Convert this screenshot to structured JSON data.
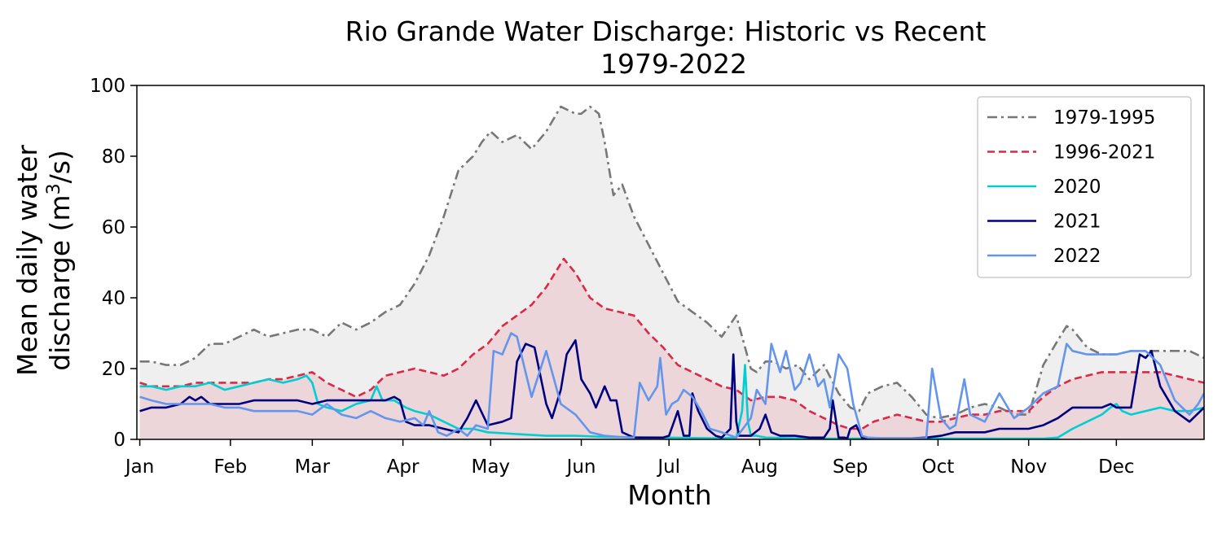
{
  "chart_data": {
    "type": "line",
    "title": "Rio Grande Water Discharge: Historic vs Recent",
    "subtitle": "1979-2022",
    "xlabel": "Month",
    "ylabel_line1": "Mean daily water",
    "ylabel_line2_prefix": "discharge (m",
    "ylabel_superscript": "3",
    "ylabel_line2_suffix": "/s)",
    "xlim": [
      0,
      365
    ],
    "ylim": [
      0,
      100
    ],
    "yticks": [
      0,
      20,
      40,
      60,
      80,
      100
    ],
    "xticks": [
      {
        "day": 1,
        "label": "Jan"
      },
      {
        "day": 32,
        "label": "Feb"
      },
      {
        "day": 60,
        "label": "Mar"
      },
      {
        "day": 91,
        "label": "Apr"
      },
      {
        "day": 121,
        "label": "May"
      },
      {
        "day": 152,
        "label": "Jun"
      },
      {
        "day": 182,
        "label": "Jul"
      },
      {
        "day": 213,
        "label": "Aug"
      },
      {
        "day": 244,
        "label": "Sep"
      },
      {
        "day": 274,
        "label": "Oct"
      },
      {
        "day": 305,
        "label": "Nov"
      },
      {
        "day": 335,
        "label": "Dec"
      }
    ],
    "legend_position": "top-right",
    "fills": [
      {
        "series": "1979-1995",
        "color": "#efefef"
      },
      {
        "series": "1996-2021",
        "color": "#ecd6da"
      }
    ],
    "series": [
      {
        "name": "1979-1995",
        "color": "#777777",
        "dash": "dashdot",
        "x": [
          1,
          5,
          10,
          15,
          20,
          25,
          30,
          35,
          40,
          45,
          50,
          55,
          60,
          65,
          70,
          75,
          80,
          85,
          90,
          95,
          100,
          105,
          110,
          115,
          118,
          121,
          125,
          130,
          135,
          140,
          145,
          150,
          152,
          155,
          158,
          160,
          163,
          166,
          170,
          175,
          180,
          185,
          190,
          195,
          200,
          205,
          210,
          212,
          215,
          218,
          222,
          226,
          230,
          235,
          240,
          244,
          247,
          250,
          255,
          260,
          265,
          270,
          274,
          280,
          285,
          290,
          295,
          300,
          305,
          310,
          315,
          318,
          320,
          325,
          330,
          335,
          340,
          345,
          350,
          355,
          360,
          365
        ],
        "y": [
          22,
          22,
          21,
          21,
          23,
          27,
          27,
          29,
          31,
          29,
          30,
          31,
          31,
          29,
          33,
          31,
          33,
          36,
          38,
          44,
          52,
          63,
          76,
          80,
          84,
          87,
          84,
          86,
          82,
          87,
          94,
          92,
          92,
          94,
          92,
          84,
          69,
          72,
          63,
          55,
          47,
          39,
          36,
          33,
          29,
          35,
          20,
          19,
          22,
          22,
          20,
          21,
          17,
          21,
          13,
          9,
          8,
          13,
          15,
          16,
          12,
          7,
          6,
          7,
          9,
          10,
          9,
          7,
          7,
          21,
          28,
          32,
          31,
          26,
          24,
          24,
          25,
          25,
          25,
          25,
          25,
          23
        ]
      },
      {
        "name": "1996-2021",
        "color": "#dc2847",
        "dash": "dashed",
        "x": [
          1,
          5,
          10,
          15,
          20,
          25,
          30,
          35,
          40,
          45,
          50,
          55,
          60,
          65,
          70,
          75,
          80,
          85,
          90,
          95,
          100,
          105,
          110,
          115,
          120,
          125,
          130,
          135,
          140,
          143,
          146,
          150,
          155,
          160,
          165,
          170,
          175,
          180,
          185,
          190,
          195,
          200,
          205,
          210,
          215,
          220,
          225,
          230,
          235,
          240,
          244,
          248,
          252,
          256,
          260,
          265,
          270,
          275,
          280,
          285,
          290,
          295,
          300,
          305,
          310,
          315,
          320,
          325,
          330,
          335,
          340,
          345,
          350,
          355,
          360,
          365
        ],
        "y": [
          16,
          15,
          15,
          15,
          16,
          16,
          16,
          16,
          16,
          17,
          17,
          18,
          19,
          16,
          14,
          12,
          14,
          18,
          19,
          20,
          19,
          18,
          20,
          24,
          27,
          32,
          35,
          38,
          43,
          47,
          51,
          47,
          40,
          37,
          36,
          35,
          30,
          26,
          21,
          19,
          17,
          15,
          14,
          11,
          12,
          12,
          11,
          8,
          6,
          4,
          3,
          3,
          5,
          6,
          7,
          6,
          5,
          5,
          6,
          7,
          7,
          8,
          8,
          8,
          12,
          15,
          17,
          18,
          19,
          19,
          19,
          19,
          19,
          18,
          17,
          16
        ]
      },
      {
        "name": "2020",
        "color": "#00ced1",
        "dash": "solid",
        "x": [
          1,
          5,
          10,
          15,
          20,
          25,
          30,
          35,
          40,
          45,
          50,
          55,
          58,
          60,
          62,
          65,
          70,
          75,
          80,
          82,
          84,
          88,
          92,
          95,
          100,
          105,
          110,
          115,
          120,
          130,
          140,
          150,
          160,
          170,
          180,
          190,
          200,
          205,
          207,
          208,
          209,
          210,
          212,
          215,
          225,
          240,
          255,
          270,
          280,
          290,
          300,
          310,
          315,
          320,
          325,
          330,
          333,
          335,
          337,
          340,
          345,
          350,
          355,
          360,
          365
        ],
        "y": [
          15,
          15,
          14,
          15,
          15,
          16,
          14,
          15,
          16,
          17,
          16,
          17,
          18,
          16,
          10,
          9,
          8,
          10,
          11,
          15,
          11,
          11,
          9,
          8,
          7,
          5,
          3,
          3,
          2,
          1.5,
          1,
          1,
          0.7,
          0.6,
          0.5,
          0.4,
          0.3,
          0.5,
          8,
          21,
          5,
          1,
          1,
          0.5,
          0.3,
          0.2,
          0.2,
          0.2,
          0.2,
          0.2,
          0.2,
          0.2,
          0.5,
          3,
          5,
          7,
          9,
          10,
          8,
          7,
          8,
          9,
          8,
          8,
          9
        ]
      },
      {
        "name": "2021",
        "color": "#00007f",
        "dash": "solid",
        "x": [
          1,
          5,
          10,
          15,
          18,
          20,
          22,
          25,
          30,
          35,
          40,
          45,
          50,
          55,
          60,
          65,
          70,
          75,
          80,
          85,
          88,
          90,
          92,
          95,
          100,
          105,
          110,
          113,
          116,
          120,
          125,
          128,
          130,
          133,
          136,
          140,
          142,
          145,
          147,
          150,
          152,
          155,
          157,
          160,
          162,
          164,
          166,
          170,
          175,
          180,
          182,
          185,
          187,
          189,
          190,
          192,
          195,
          198,
          200,
          203,
          204,
          205,
          206,
          210,
          213,
          215,
          217,
          220,
          225,
          230,
          235,
          237,
          238,
          240,
          242,
          243,
          244,
          246,
          248,
          252,
          256,
          260,
          265,
          270,
          275,
          280,
          285,
          290,
          295,
          300,
          305,
          310,
          315,
          320,
          325,
          330,
          333,
          335,
          337,
          340,
          343,
          345,
          347,
          350,
          355,
          360,
          365
        ],
        "y": [
          8,
          9,
          9,
          10,
          12,
          11,
          12,
          10,
          10,
          10,
          11,
          11,
          11,
          11,
          10,
          11,
          11,
          11,
          11,
          11,
          12,
          11,
          5,
          4,
          4,
          3,
          2,
          6,
          11,
          4,
          5,
          6,
          22,
          27,
          26,
          10,
          6,
          14,
          24,
          28,
          17,
          13,
          9,
          15,
          11,
          11,
          2,
          0.5,
          0.5,
          0.5,
          1,
          8,
          1,
          1,
          13,
          8,
          3,
          1,
          0.5,
          3,
          24,
          5,
          1,
          1,
          3,
          7,
          2,
          1,
          1,
          0.5,
          0.5,
          3,
          11,
          0.5,
          0.5,
          0.3,
          3,
          4,
          0.5,
          0.3,
          0.3,
          0.3,
          0.3,
          0.5,
          1,
          2,
          2,
          2,
          3,
          3,
          3,
          4,
          6,
          9,
          9,
          9,
          10,
          9,
          9,
          9,
          24,
          23,
          25,
          15,
          8,
          5,
          9
        ]
      },
      {
        "name": "2022",
        "color": "#6495ed",
        "dash": "solid",
        "x": [
          1,
          5,
          10,
          15,
          20,
          25,
          30,
          35,
          40,
          45,
          50,
          55,
          60,
          65,
          70,
          75,
          80,
          85,
          90,
          95,
          98,
          100,
          103,
          106,
          110,
          113,
          116,
          120,
          122,
          125,
          128,
          130,
          135,
          140,
          145,
          150,
          155,
          160,
          165,
          170,
          172,
          175,
          178,
          179,
          181,
          183,
          185,
          187,
          190,
          193,
          196,
          200,
          205,
          210,
          212,
          215,
          217,
          220,
          222,
          225,
          227,
          230,
          233,
          235,
          237,
          240,
          243,
          245,
          248,
          250,
          255,
          260,
          265,
          270,
          272,
          275,
          278,
          280,
          283,
          285,
          290,
          295,
          300,
          305,
          310,
          315,
          318,
          320,
          325,
          330,
          335,
          340,
          345,
          350,
          355,
          360,
          363,
          365
        ],
        "y": [
          12,
          11,
          10,
          10,
          10,
          10,
          9,
          9,
          8,
          8,
          8,
          8,
          7,
          10,
          7,
          6,
          8,
          6,
          5,
          6,
          4,
          8,
          2,
          1,
          3,
          1,
          4,
          3,
          25,
          24,
          30,
          29,
          12,
          25,
          10,
          7,
          2,
          1,
          0.7,
          0.5,
          16,
          11,
          15,
          23,
          7,
          10,
          11,
          14,
          12,
          8,
          3,
          2,
          0.5,
          6,
          14,
          10,
          27,
          19,
          25,
          14,
          16,
          24,
          15,
          17,
          9,
          24,
          20,
          10,
          1,
          0.5,
          0.3,
          0.3,
          0.3,
          0.3,
          20,
          6,
          3,
          4,
          17,
          7,
          5,
          13,
          6,
          9,
          13,
          15,
          27,
          25,
          24,
          24,
          24,
          25,
          25,
          21,
          11,
          7,
          10,
          13
        ]
      }
    ]
  }
}
